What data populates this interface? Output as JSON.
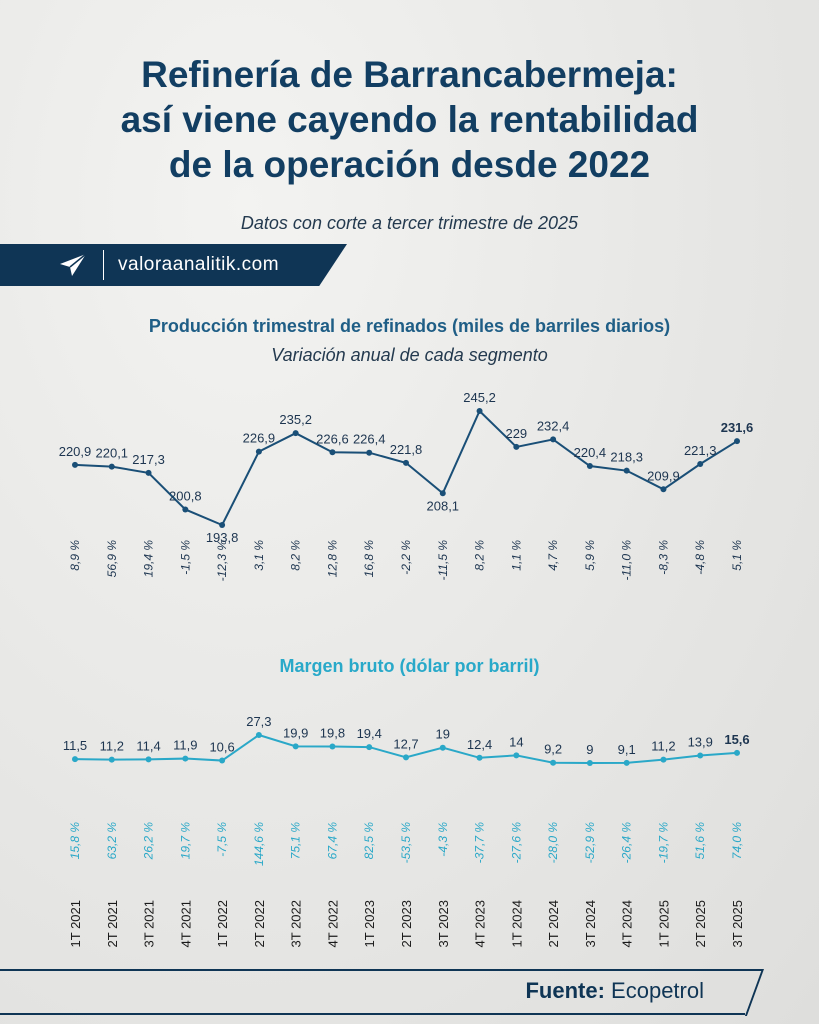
{
  "header": {
    "title_lines": [
      "Refinería de Barrancabermeja:",
      "así viene cayendo la rentabilidad",
      "de la operación desde 2022"
    ],
    "subtitle": "Datos con corte a tercer trimestre de 2025",
    "site": "valoraanalitik.com",
    "logo_icon": "valora-paper-plane-logo"
  },
  "colors": {
    "production": "#1a4f77",
    "margin": "#2aa8c8",
    "navy": "#0f3555"
  },
  "chart_data": [
    {
      "type": "line",
      "title": "Producción trimestral de refinados (miles de barriles diarios)",
      "subtitle": "Variación anual de cada segmento",
      "categories": [
        "1T 2021",
        "2T 2021",
        "3T 2021",
        "4T 2021",
        "1T 2022",
        "2T 2022",
        "3T 2022",
        "4T 2022",
        "1T 2023",
        "2T 2023",
        "3T 2023",
        "4T 2023",
        "1T 2024",
        "2T 2024",
        "3T 2024",
        "4T 2024",
        "1T 2025",
        "2T 2025",
        "3T 2025"
      ],
      "values": [
        220.9,
        220.1,
        217.3,
        200.8,
        193.8,
        226.9,
        235.2,
        226.6,
        226.4,
        221.8,
        208.1,
        245.2,
        229,
        232.4,
        220.4,
        218.3,
        209.9,
        221.3,
        231.6
      ],
      "value_labels": [
        "220,9",
        "220,1",
        "217,3",
        "200,8",
        "193,8",
        "226,9",
        "235,2",
        "226,6",
        "226,4",
        "221,8",
        "208,1",
        "245,2",
        "229",
        "232,4",
        "220,4",
        "218,3",
        "209,9",
        "221,3",
        "231,6"
      ],
      "annual_change": [
        "8,9 %",
        "56,9 %",
        "19,4 %",
        "-1,5 %",
        "-12,3 %",
        "3,1 %",
        "8,2 %",
        "12,8 %",
        "16,8 %",
        "-2,2 %",
        "-11,5 %",
        "8,2 %",
        "1,1 %",
        "4,7 %",
        "5,9 %",
        "-11,0 %",
        "-8,3 %",
        "-4,8 %",
        "5,1 %"
      ],
      "grid": false
    },
    {
      "type": "line",
      "title": "Margen bruto (dólar por barril)",
      "categories": [
        "1T 2021",
        "2T 2021",
        "3T 2021",
        "4T 2021",
        "1T 2022",
        "2T 2022",
        "3T 2022",
        "4T 2022",
        "1T 2023",
        "2T 2023",
        "3T 2023",
        "4T 2023",
        "1T 2024",
        "2T 2024",
        "3T 2024",
        "4T 2024",
        "1T 2025",
        "2T 2025",
        "3T 2025"
      ],
      "values": [
        11.5,
        11.2,
        11.4,
        11.9,
        10.6,
        27.3,
        19.9,
        19.8,
        19.4,
        12.7,
        19,
        12.4,
        14,
        9.2,
        9,
        9.1,
        11.2,
        13.9,
        15.6
      ],
      "value_labels": [
        "11,5",
        "11,2",
        "11,4",
        "11,9",
        "10,6",
        "27,3",
        "19,9",
        "19,8",
        "19,4",
        "12,7",
        "19",
        "12,4",
        "14",
        "9,2",
        "9",
        "9,1",
        "11,2",
        "13,9",
        "15,6"
      ],
      "annual_change": [
        "15,8 %",
        "63,2 %",
        "26,2 %",
        "19,7 %",
        "-7,5 %",
        "144,6 %",
        "75,1 %",
        "67,4 %",
        "82,5 %",
        "-53,5 %",
        "-4,3 %",
        "-37,7 %",
        "-27,6 %",
        "-28,0 %",
        "-52,9 %",
        "-26,4 %",
        "-19,7 %",
        "51,6 %",
        "74,0 %"
      ],
      "grid": false
    }
  ],
  "footer": {
    "source_label": "Fuente:",
    "source_value": "Ecopetrol"
  }
}
